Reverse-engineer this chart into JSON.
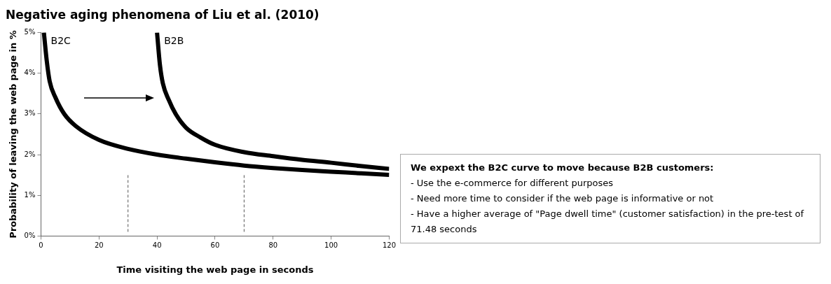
{
  "chart_data": {
    "type": "line",
    "title": "Negative aging phenomena of Liu et al. (2010)",
    "xlabel": "Time visiting the web page in seconds",
    "ylabel": "Probability of leaving the web page in %",
    "xlim": [
      0,
      120
    ],
    "xticks": [
      0,
      20,
      40,
      60,
      80,
      100,
      120
    ],
    "ylim": [
      0,
      5
    ],
    "yticks": [
      {
        "value": 0,
        "label": "0%"
      },
      {
        "value": 1,
        "label": "1%"
      },
      {
        "value": 2,
        "label": "2%"
      },
      {
        "value": 3,
        "label": "3%"
      },
      {
        "value": 4,
        "label": "4%"
      },
      {
        "value": 5,
        "label": "5%"
      }
    ],
    "grid": false,
    "legend": false,
    "marker": "none",
    "line_style": "solid",
    "series": [
      {
        "name": "B2C",
        "color": "#000000",
        "x": [
          1,
          2,
          3,
          5,
          8,
          12,
          20,
          30,
          40,
          50,
          60,
          70,
          80,
          90,
          100,
          110,
          120
        ],
        "values": [
          5,
          4.3,
          3.8,
          3.4,
          3.0,
          2.7,
          2.36,
          2.14,
          2.0,
          1.9,
          1.81,
          1.73,
          1.67,
          1.62,
          1.58,
          1.54,
          1.5
        ]
      },
      {
        "name": "B2B",
        "color": "#000000",
        "x": [
          40,
          41,
          42,
          44,
          46.4,
          50,
          55,
          60,
          70,
          80,
          90,
          100,
          110,
          120
        ],
        "values": [
          5,
          4.2,
          3.75,
          3.35,
          3.0,
          2.66,
          2.42,
          2.24,
          2.06,
          1.96,
          1.87,
          1.8,
          1.72,
          1.65
        ]
      }
    ],
    "ref_lines": [
      {
        "axis": "x",
        "value": 30,
        "color": "#555555",
        "line_style": "dashed"
      },
      {
        "axis": "x",
        "value": 70,
        "color": "#555555",
        "line_style": "dashed"
      }
    ],
    "annotations": [
      "We expext the B2C curve to move because B2B customers:",
      "- Use the e-commerce for different purposes",
      "- Need more time to consider if the web page is informative or not",
      "- Have a higher average of \"Page dwell time\" (customer satisfaction) in the pre-test of 71.48 seconds"
    ]
  }
}
